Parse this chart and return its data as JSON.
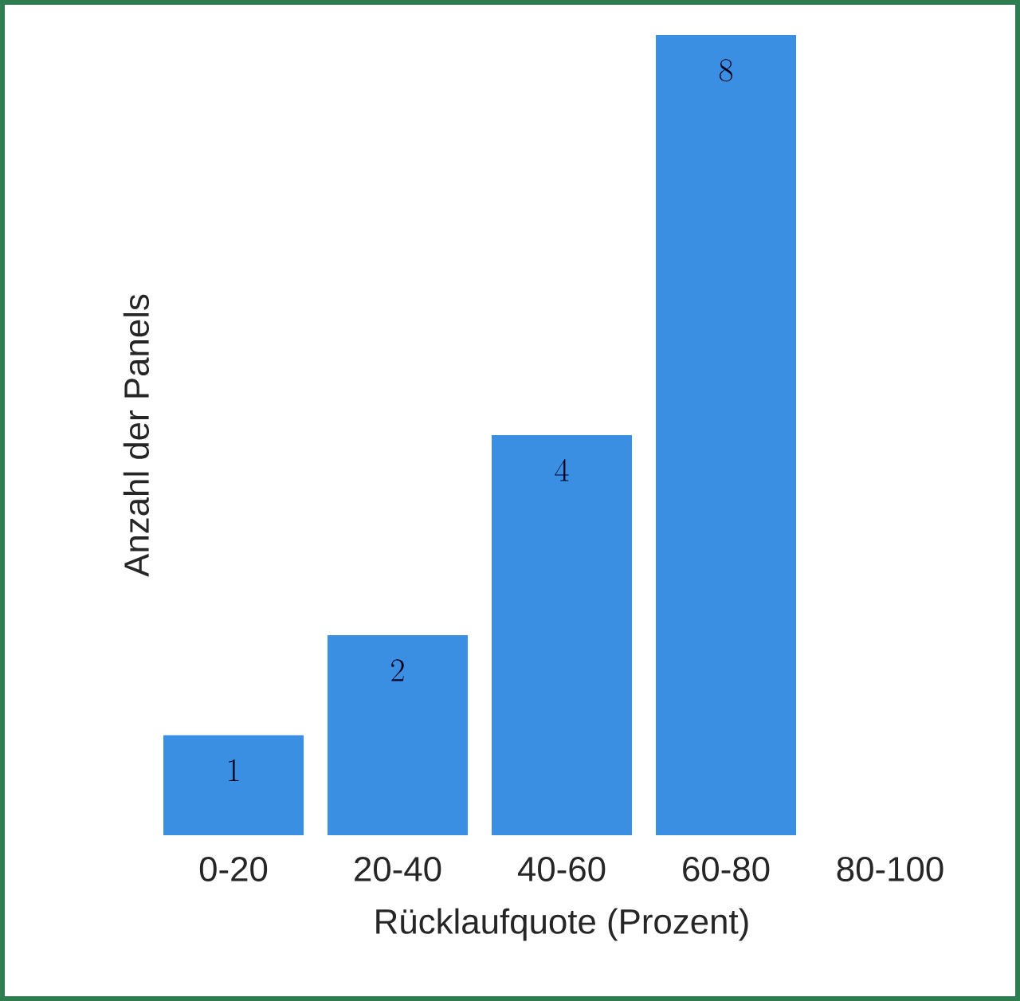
{
  "chart_data": {
    "type": "bar",
    "xlabel": "Rücklaufquote (Prozent)",
    "ylabel": "Anzahl der Panels",
    "categories": [
      "0-20",
      "20-40",
      "40-60",
      "60-80",
      "80-100"
    ],
    "values": [
      1,
      2,
      4,
      8,
      null
    ],
    "color": "#3a8fe2",
    "data_labels": true
  }
}
